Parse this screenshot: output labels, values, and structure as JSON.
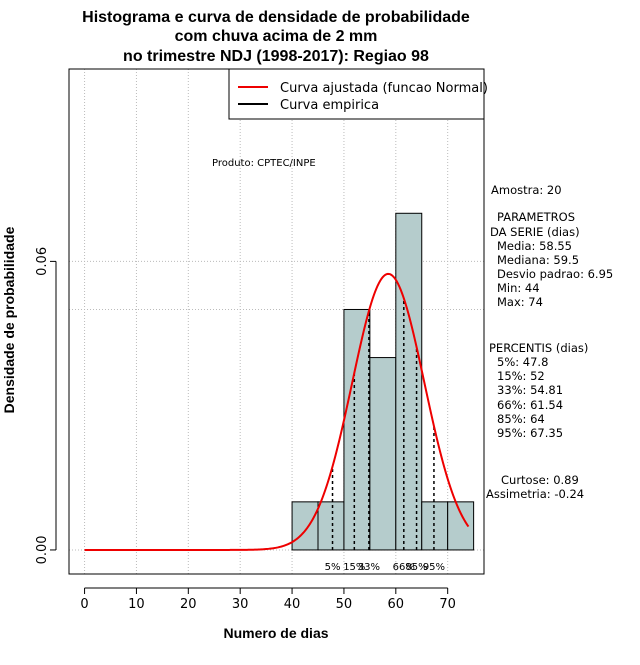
{
  "chart_data": {
    "type": "histogram",
    "title": [
      "Histograma e curva de densidade de probabilidade",
      "com chuva acima de 2 mm",
      "no trimestre NDJ (1998-2017): Regiao 98"
    ],
    "xlabel": "Numero de dias",
    "ylabel": "Densidade de probabilidade",
    "xlim": [
      -3,
      77
    ],
    "ylim": [
      -0.005,
      0.1
    ],
    "x_ticks": [
      0,
      10,
      20,
      30,
      40,
      50,
      60,
      70
    ],
    "y_ticks": [
      0.0,
      0.06
    ],
    "y_tick_labels": [
      "0.00",
      "0.06"
    ],
    "grid_y_lines": [
      0.05,
      0.1
    ],
    "bins": [
      {
        "start": 40,
        "end": 45,
        "density": 0.01
      },
      {
        "start": 45,
        "end": 50,
        "density": 0.01
      },
      {
        "start": 50,
        "end": 55,
        "density": 0.05
      },
      {
        "start": 55,
        "end": 60,
        "density": 0.04
      },
      {
        "start": 60,
        "end": 65,
        "density": 0.07
      },
      {
        "start": 65,
        "end": 70,
        "density": 0.01
      },
      {
        "start": 70,
        "end": 75,
        "density": 0.01
      }
    ],
    "normal_curve": {
      "mean": 58.55,
      "sd": 6.95,
      "x_from": 0,
      "x_to": 74
    },
    "percentile_lines": [
      {
        "label": "5%",
        "value": 47.8
      },
      {
        "label": "15%",
        "value": 52
      },
      {
        "label": "33%",
        "value": 54.81
      },
      {
        "label": "66%",
        "value": 61.54
      },
      {
        "label": "85%",
        "value": 64
      },
      {
        "label": "95%",
        "value": 67.35
      }
    ],
    "legend": [
      {
        "label": "Curva ajustada (funcao Normal)",
        "color": "#ee0000"
      },
      {
        "label": "Curva empirica",
        "color": "#000000"
      }
    ],
    "product_label": "Produto: CPTEC/INPE",
    "stats_block": {
      "amostra": "Amostra: 20",
      "parametros_title": [
        "PARAMETROS",
        "DA SERIE (dias)"
      ],
      "parametros": [
        "Media: 58.55",
        "Mediana: 59.5",
        "Desvio padrao: 6.95",
        "Min: 44",
        "Max: 74"
      ],
      "percentis_title": "PERCENTIS (dias)",
      "percentis": [
        "5%: 47.8",
        "15%: 52",
        "33%: 54.81",
        "66%: 61.54",
        "85%: 64",
        "95%: 67.35"
      ],
      "curtose": "Curtose: 0.89",
      "assimetria": "Assimetria: -0.24"
    },
    "colors": {
      "bar_fill": "#b5cccc",
      "curve": "#ee0000",
      "grid": "#bbbbbb"
    }
  }
}
